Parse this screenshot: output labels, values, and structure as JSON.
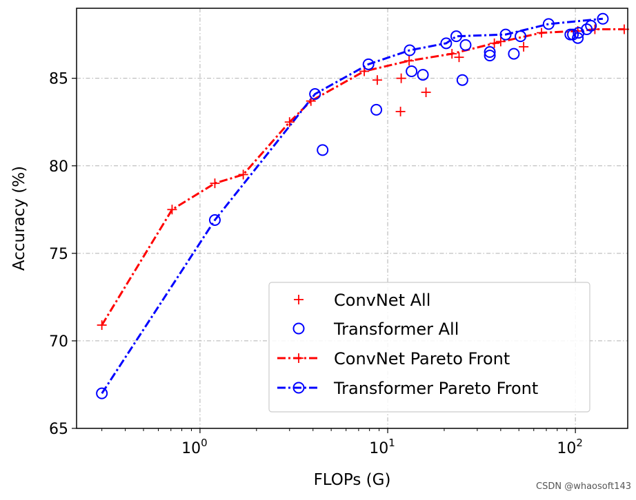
{
  "chart_data": {
    "type": "scatter",
    "title": "",
    "xlabel": "FLOPs (G)",
    "ylabel": "Accuracy (%)",
    "xscale": "log",
    "xlim": [
      0.22,
      190
    ],
    "ylim": [
      65,
      89
    ],
    "grid": true,
    "legend_position": "lower-right",
    "y_ticks": [
      65,
      70,
      75,
      80,
      85
    ],
    "x_ticks": [
      {
        "value": 1,
        "base": "10",
        "exp": "0"
      },
      {
        "value": 10,
        "base": "10",
        "exp": "1"
      },
      {
        "value": 100,
        "base": "10",
        "exp": "2"
      }
    ],
    "series": [
      {
        "name": "ConvNet All",
        "kind": "points",
        "marker": "plus",
        "color": "#ff0000",
        "points": [
          [
            0.3,
            70.9
          ],
          [
            0.71,
            77.5
          ],
          [
            1.2,
            79.0
          ],
          [
            1.7,
            79.5
          ],
          [
            3.0,
            82.5
          ],
          [
            3.9,
            83.7
          ],
          [
            7.5,
            85.4
          ],
          [
            8.8,
            84.9
          ],
          [
            11.8,
            85.0
          ],
          [
            11.7,
            83.1
          ],
          [
            13.0,
            86.0
          ],
          [
            16.0,
            84.2
          ],
          [
            22.0,
            86.4
          ],
          [
            24.0,
            86.2
          ],
          [
            37.0,
            87.0
          ],
          [
            40.0,
            87.1
          ],
          [
            53.0,
            86.8
          ],
          [
            66.0,
            87.6
          ],
          [
            103.0,
            87.7
          ],
          [
            127.0,
            87.8
          ],
          [
            182.0,
            87.8
          ]
        ]
      },
      {
        "name": "Transformer All",
        "kind": "points",
        "marker": "circle",
        "color": "#0000ff",
        "points": [
          [
            0.3,
            67.0
          ],
          [
            1.2,
            76.9
          ],
          [
            4.1,
            84.1
          ],
          [
            4.5,
            80.9
          ],
          [
            7.9,
            85.8
          ],
          [
            8.7,
            83.2
          ],
          [
            13.1,
            86.6
          ],
          [
            13.4,
            85.4
          ],
          [
            15.4,
            85.2
          ],
          [
            20.5,
            87.0
          ],
          [
            23.2,
            87.4
          ],
          [
            25.0,
            84.9
          ],
          [
            26.0,
            86.9
          ],
          [
            35.0,
            86.3
          ],
          [
            35.0,
            86.5
          ],
          [
            42.5,
            87.5
          ],
          [
            47.0,
            86.4
          ],
          [
            51.0,
            87.4
          ],
          [
            72.0,
            88.1
          ],
          [
            94.0,
            87.5
          ],
          [
            97.0,
            87.5
          ],
          [
            103.0,
            87.3
          ],
          [
            104.0,
            87.6
          ],
          [
            115.0,
            87.8
          ],
          [
            121.0,
            88.0
          ],
          [
            140.0,
            88.4
          ]
        ]
      },
      {
        "name": "ConvNet Pareto Front",
        "kind": "line",
        "marker": "plus",
        "color": "#ff0000",
        "points": [
          [
            0.3,
            70.9
          ],
          [
            0.71,
            77.5
          ],
          [
            1.2,
            79.0
          ],
          [
            1.7,
            79.5
          ],
          [
            3.0,
            82.5
          ],
          [
            3.9,
            83.7
          ],
          [
            7.5,
            85.4
          ],
          [
            13.0,
            86.0
          ],
          [
            22.0,
            86.4
          ],
          [
            37.0,
            87.0
          ],
          [
            66.0,
            87.6
          ],
          [
            103.0,
            87.7
          ],
          [
            127.0,
            87.8
          ],
          [
            182.0,
            87.8
          ]
        ]
      },
      {
        "name": "Transformer Pareto Front",
        "kind": "line",
        "marker": "circle",
        "color": "#0000ff",
        "points": [
          [
            0.3,
            67.0
          ],
          [
            1.2,
            76.9
          ],
          [
            4.1,
            84.1
          ],
          [
            7.9,
            85.8
          ],
          [
            13.1,
            86.6
          ],
          [
            20.5,
            87.0
          ],
          [
            23.2,
            87.4
          ],
          [
            42.5,
            87.5
          ],
          [
            72.0,
            88.1
          ],
          [
            140.0,
            88.4
          ]
        ]
      }
    ]
  },
  "watermark": "CSDN @whaosoft143"
}
